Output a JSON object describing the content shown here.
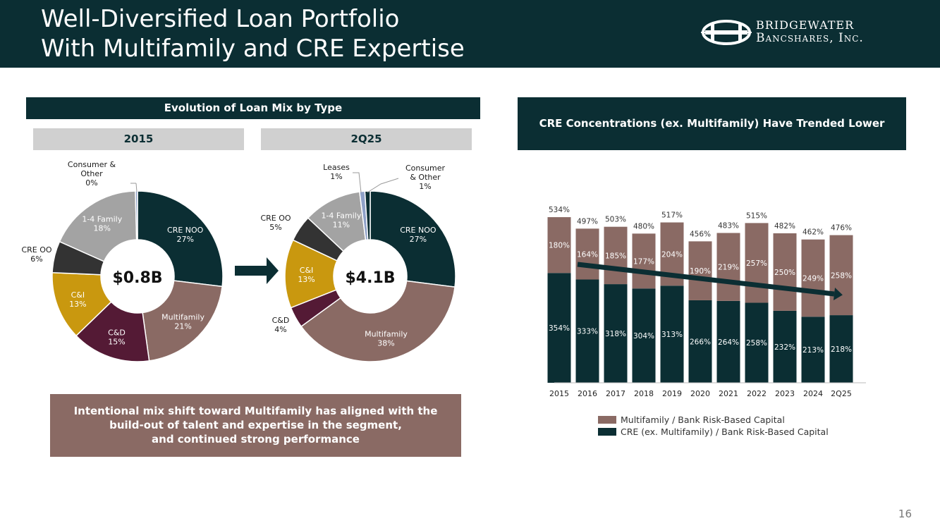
{
  "header": {
    "title_line1": "Well-Diversified Loan Portfolio",
    "title_line2": "With Multifamily and CRE Expertise",
    "logo_line1": "Bridgewater",
    "logo_line2": "Bancshares, Inc."
  },
  "left_panel": {
    "title": "Evolution of Loan Mix by Type",
    "tab_2015": "2015",
    "tab_2q25": "2Q25",
    "callout_line1": "Intentional mix shift toward Multifamily has aligned with the",
    "callout_line2": "build-out of talent and expertise in the segment,",
    "callout_line3": "and continued strong performance"
  },
  "right_panel": {
    "title": "CRE Concentrations (ex. Multifamily) Have Trended Lower"
  },
  "page_number": "16",
  "colors": {
    "navy": "#0b2e33",
    "mauve": "#8a6a64",
    "plum": "#541a35",
    "gold": "#c9980f",
    "dark_gray": "#333333",
    "light_gray": "#a3a3a3",
    "lavender": "#8fa1c8"
  },
  "chart_data": [
    {
      "type": "pie",
      "center_label": "$0.8B",
      "slices": [
        {
          "name": "CRE NOO",
          "value": 27,
          "label": "27%",
          "color": "#0b2e33"
        },
        {
          "name": "Multifamily",
          "value": 21,
          "label": "21%",
          "color": "#8a6a64"
        },
        {
          "name": "C&D",
          "value": 15,
          "label": "15%",
          "color": "#541a35"
        },
        {
          "name": "C&I",
          "value": 13,
          "label": "13%",
          "color": "#c9980f"
        },
        {
          "name": "CRE OO",
          "value": 6,
          "label": "6%",
          "color": "#333333"
        },
        {
          "name": "1-4 Family",
          "value": 18,
          "label": "18%",
          "color": "#a3a3a3"
        },
        {
          "name": "Consumer & Other",
          "value": 0,
          "label": "0%",
          "color": "#8fa1c8"
        }
      ]
    },
    {
      "type": "pie",
      "center_label": "$4.1B",
      "slices": [
        {
          "name": "CRE NOO",
          "value": 27,
          "label": "27%",
          "color": "#0b2e33"
        },
        {
          "name": "Multifamily",
          "value": 38,
          "label": "38%",
          "color": "#8a6a64"
        },
        {
          "name": "C&D",
          "value": 4,
          "label": "4%",
          "color": "#541a35"
        },
        {
          "name": "C&I",
          "value": 13,
          "label": "13%",
          "color": "#c9980f"
        },
        {
          "name": "CRE OO",
          "value": 5,
          "label": "5%",
          "color": "#333333"
        },
        {
          "name": "1-4 Family",
          "value": 11,
          "label": "11%",
          "color": "#a3a3a3"
        },
        {
          "name": "Leases",
          "value": 1,
          "label": "1%",
          "color": "#8fa1c8"
        },
        {
          "name": "Consumer & Other",
          "value": 1,
          "label": "1%",
          "color": "#0b2e33"
        }
      ]
    },
    {
      "type": "bar",
      "stacked": true,
      "categories": [
        "2015",
        "2016",
        "2017",
        "2018",
        "2019",
        "2020",
        "2021",
        "2022",
        "2023",
        "2024",
        "2Q25"
      ],
      "series": [
        {
          "name": "CRE (ex. Multifamily) / Bank Risk-Based Capital",
          "color": "#0b2e33",
          "values": [
            354,
            333,
            318,
            304,
            313,
            266,
            264,
            258,
            232,
            213,
            218
          ]
        },
        {
          "name": "Multifamily / Bank Risk-Based Capital",
          "color": "#8a6a64",
          "values": [
            180,
            164,
            185,
            177,
            204,
            190,
            219,
            257,
            250,
            249,
            258
          ]
        }
      ],
      "totals": [
        534,
        497,
        503,
        480,
        517,
        456,
        483,
        515,
        482,
        462,
        476
      ],
      "unit": "%",
      "legend_position": "bottom",
      "trend_arrow": true
    }
  ]
}
